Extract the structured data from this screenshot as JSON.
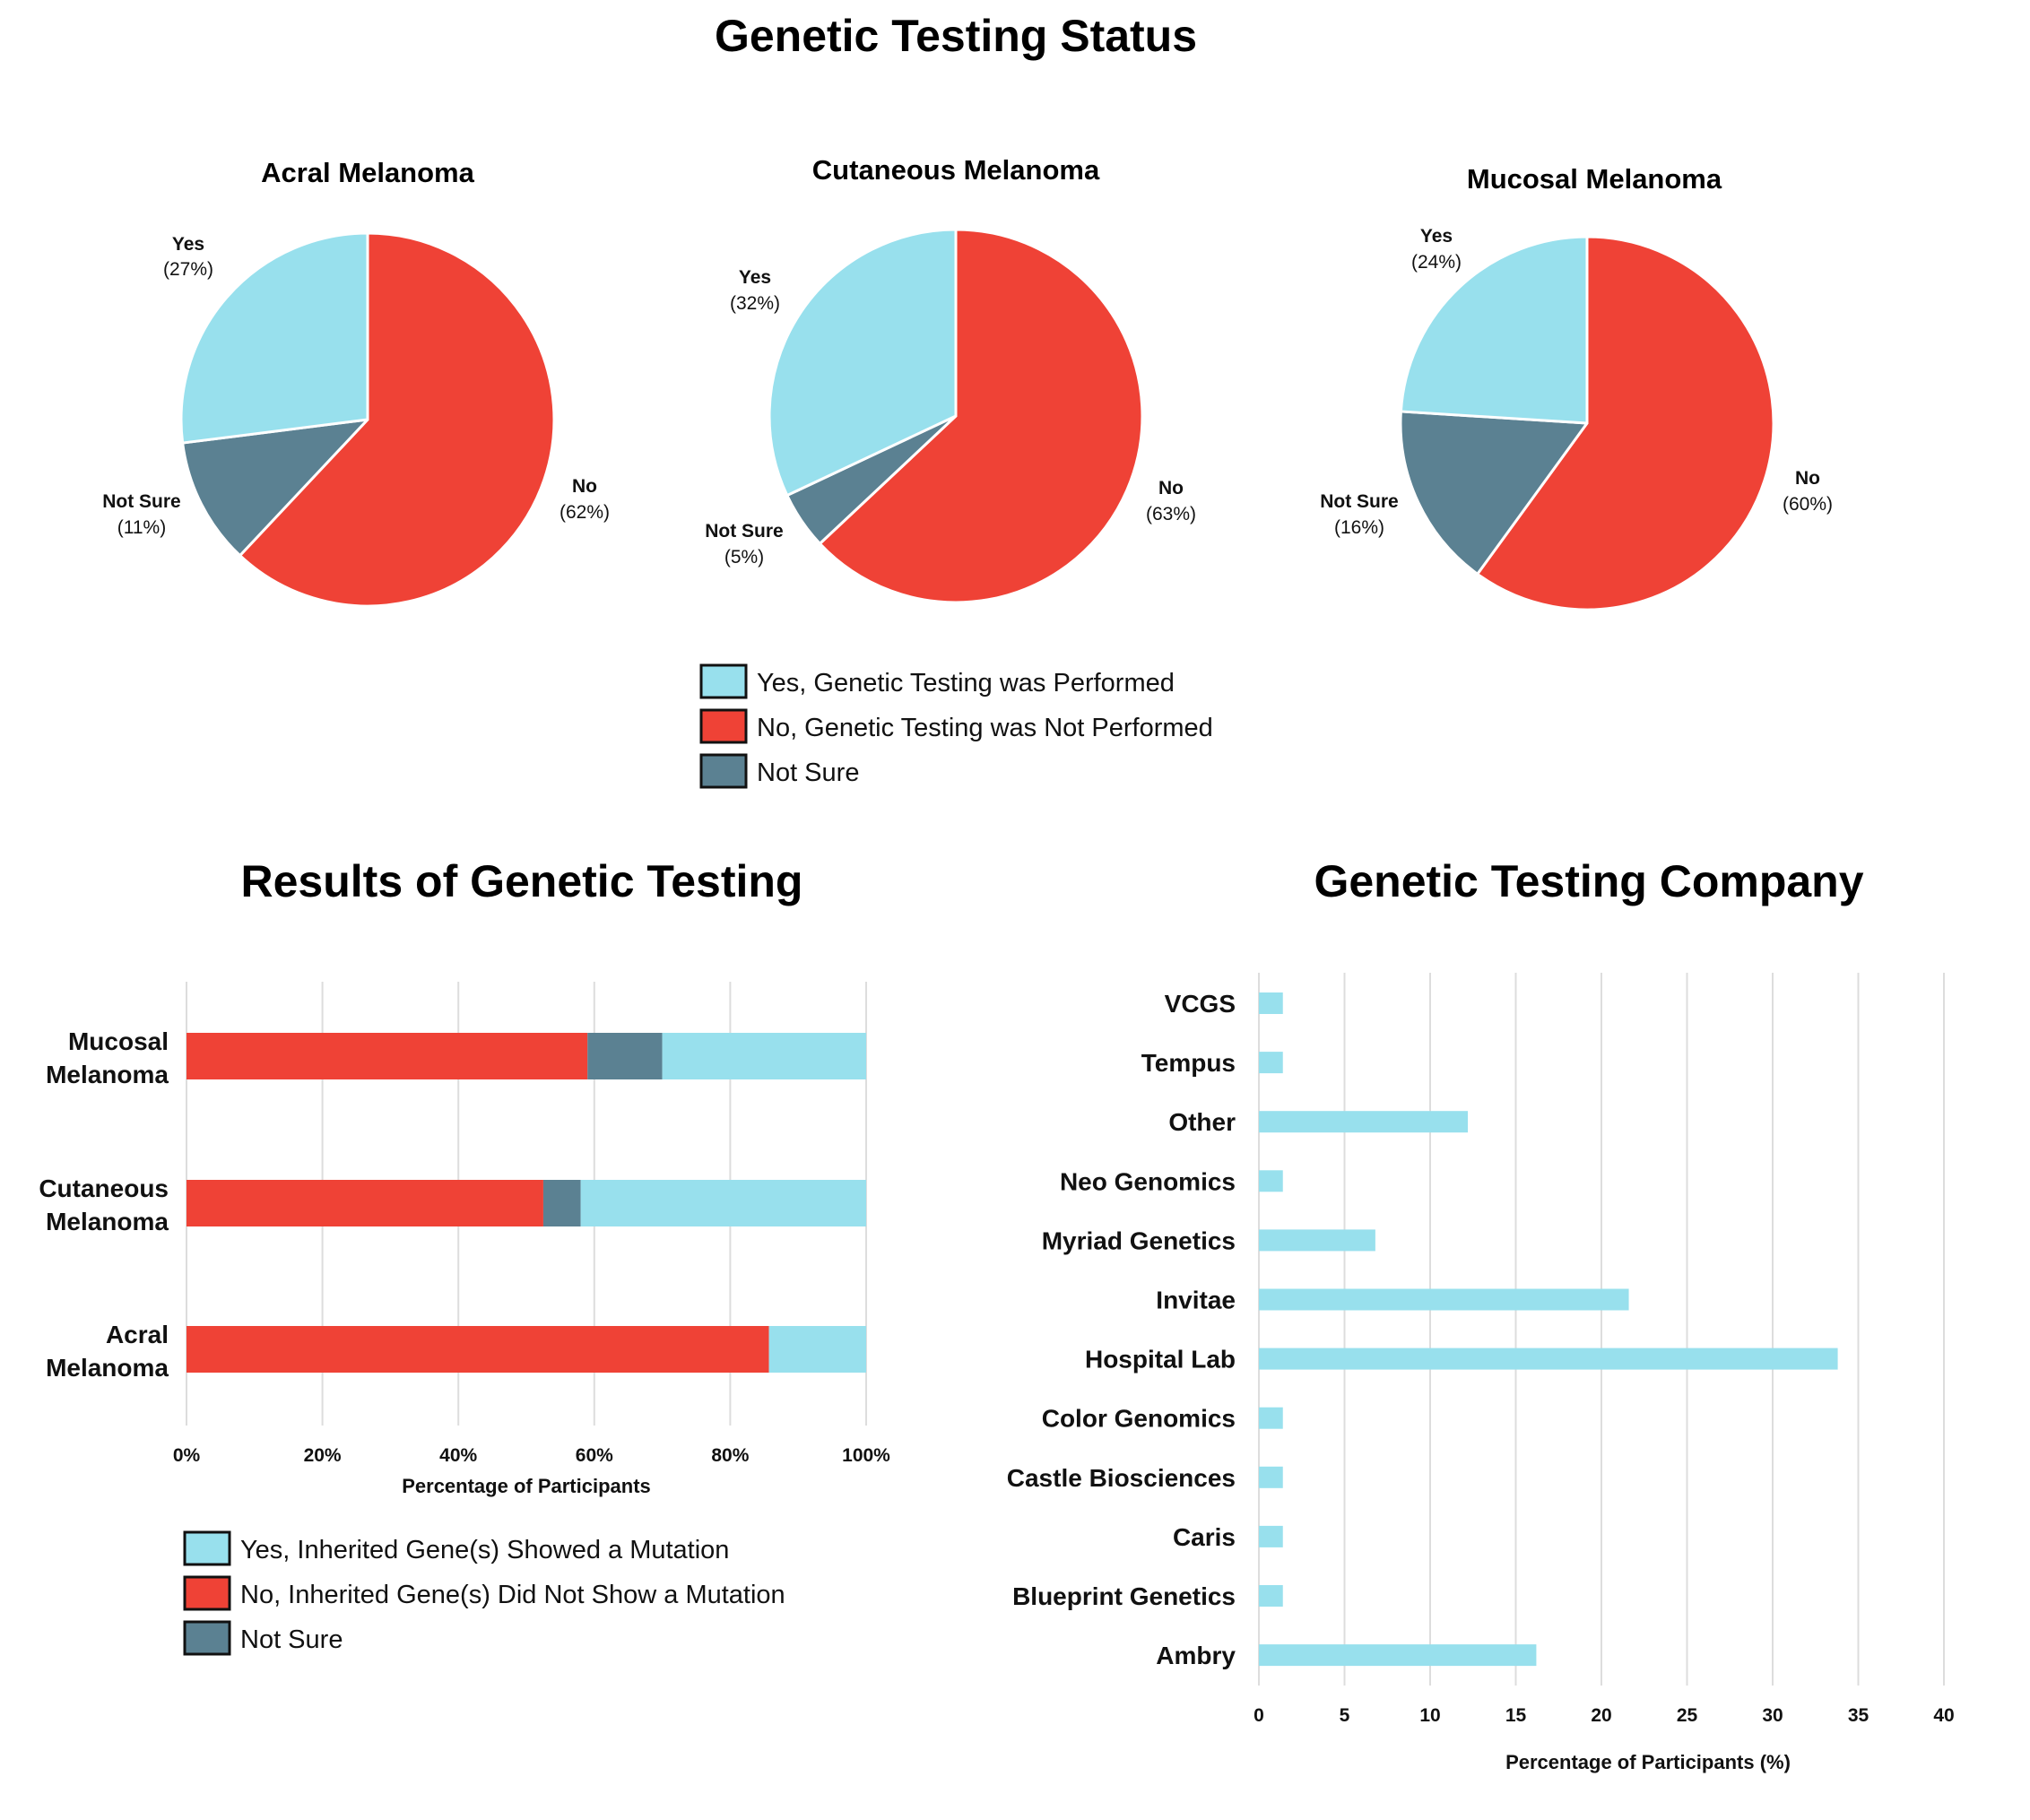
{
  "colors": {
    "yes": "#98e0ed",
    "no": "#ef4236",
    "not_sure": "#5b8192",
    "grid": "#dddddd",
    "text": "#111111"
  },
  "headings": {
    "status": "Genetic Testing Status",
    "results": "Results of Genetic Testing",
    "company": "Genetic Testing Company"
  },
  "chart_data": [
    {
      "type": "pie",
      "id": "acral",
      "title": "Acral Melanoma",
      "slices": [
        {
          "label": "No",
          "pct_text": "(62%)",
          "value": 62,
          "color_key": "no"
        },
        {
          "label": "Not Sure",
          "pct_text": "(11%)",
          "value": 11,
          "color_key": "not_sure"
        },
        {
          "label": "Yes",
          "pct_text": "(27%)",
          "value": 27,
          "color_key": "yes"
        }
      ]
    },
    {
      "type": "pie",
      "id": "cutaneous",
      "title": "Cutaneous Melanoma",
      "slices": [
        {
          "label": "No",
          "pct_text": "(63%)",
          "value": 63,
          "color_key": "no"
        },
        {
          "label": "Not Sure",
          "pct_text": "(5%)",
          "value": 5,
          "color_key": "not_sure"
        },
        {
          "label": "Yes",
          "pct_text": "(32%)",
          "value": 32,
          "color_key": "yes"
        }
      ]
    },
    {
      "type": "pie",
      "id": "mucosal",
      "title": "Mucosal Melanoma",
      "slices": [
        {
          "label": "No",
          "pct_text": "(60%)",
          "value": 60,
          "color_key": "no"
        },
        {
          "label": "Not Sure",
          "pct_text": "(16%)",
          "value": 16,
          "color_key": "not_sure"
        },
        {
          "label": "Yes",
          "pct_text": "(24%)",
          "value": 24,
          "color_key": "yes"
        }
      ]
    },
    {
      "type": "bar",
      "orientation": "horizontal",
      "stacked": true,
      "id": "results",
      "title": "Results of Genetic Testing",
      "categories": [
        [
          "Mucosal",
          "Melanoma"
        ],
        [
          "Cutaneous",
          "Melanoma"
        ],
        [
          "Acral",
          "Melanoma"
        ]
      ],
      "series": [
        {
          "name": "No, Inherited Gene(s) Did Not Show a Mutation",
          "color_key": "no",
          "values": [
            59,
            52.5,
            85.7
          ]
        },
        {
          "name": "Not Sure",
          "color_key": "not_sure",
          "values": [
            11,
            5.5,
            0
          ]
        },
        {
          "name": "Yes, Inherited Gene(s) Showed a Mutation",
          "color_key": "yes",
          "values": [
            30,
            42,
            14.3
          ]
        }
      ],
      "xlim": [
        0,
        100
      ],
      "ticks": [
        "0%",
        "20%",
        "40%",
        "60%",
        "80%",
        "100%"
      ],
      "xlabel": "Percentage of Participants",
      "legend": [
        {
          "label": "Yes, Inherited Gene(s) Showed a Mutation",
          "color_key": "yes"
        },
        {
          "label": "No, Inherited Gene(s) Did Not Show a Mutation",
          "color_key": "no"
        },
        {
          "label": "Not Sure",
          "color_key": "not_sure"
        }
      ]
    },
    {
      "type": "bar",
      "orientation": "horizontal",
      "id": "company",
      "title": "Genetic Testing Company",
      "categories": [
        "VCGS",
        "Tempus",
        "Other",
        "Neo Genomics",
        "Myriad Genetics",
        "Invitae",
        "Hospital Lab",
        "Color Genomics",
        "Castle Biosciences",
        "Caris",
        "Blueprint Genetics",
        "Ambry"
      ],
      "values": [
        1.4,
        1.4,
        12.2,
        1.4,
        6.8,
        21.6,
        33.8,
        1.4,
        1.4,
        1.4,
        1.4,
        16.2
      ],
      "xlim": [
        0,
        40
      ],
      "ticks": [
        "0",
        "5",
        "10",
        "15",
        "20",
        "25",
        "30",
        "35",
        "40"
      ],
      "xlabel": "Percentage of Participants (%)"
    }
  ],
  "status_legend": [
    {
      "label": "Yes, Genetic Testing was Performed",
      "color_key": "yes"
    },
    {
      "label": "No, Genetic Testing was Not Performed",
      "color_key": "no"
    },
    {
      "label": "Not Sure",
      "color_key": "not_sure"
    }
  ]
}
